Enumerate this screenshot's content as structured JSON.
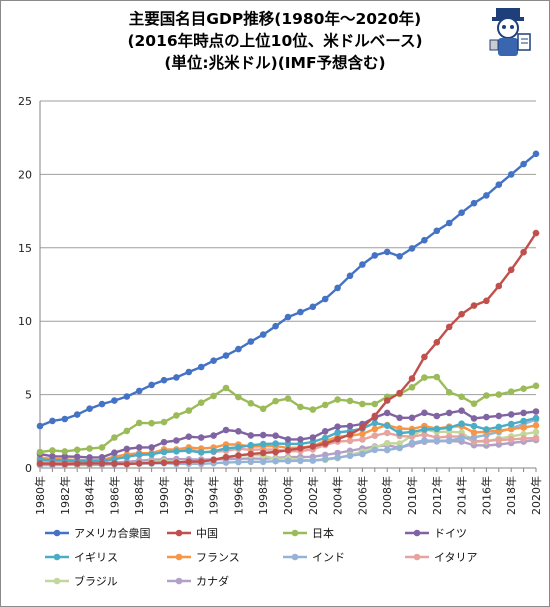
{
  "title": {
    "line1": "主要国名目GDP推移(1980年～2020年)",
    "line2": "(2016年時点の上位10位、米ドルベース)",
    "line3": "(単位:兆米ドル)(IMF予想含む)"
  },
  "chart_data": {
    "type": "line",
    "x_tick_labels": [
      "1980年",
      "1982年",
      "1984年",
      "1986年",
      "1988年",
      "1990年",
      "1992年",
      "1994年",
      "1996年",
      "1998年",
      "2000年",
      "2002年",
      "2004年",
      "2006年",
      "2008年",
      "2010年",
      "2012年",
      "2014年",
      "2016年",
      "2018年",
      "2020年"
    ],
    "y_tick_labels": [
      "0",
      "5",
      "10",
      "15",
      "20",
      "25"
    ],
    "x": [
      1980,
      1981,
      1982,
      1983,
      1984,
      1985,
      1986,
      1987,
      1988,
      1989,
      1990,
      1991,
      1992,
      1993,
      1994,
      1995,
      1996,
      1997,
      1998,
      1999,
      2000,
      2001,
      2002,
      2003,
      2004,
      2005,
      2006,
      2007,
      2008,
      2009,
      2010,
      2011,
      2012,
      2013,
      2014,
      2015,
      2016,
      2017,
      2018,
      2019,
      2020
    ],
    "ylim": [
      0,
      25
    ],
    "grid": true,
    "legend_position": "bottom",
    "series": [
      {
        "name": "アメリカ合衆国",
        "color": "#4472c4",
        "values": [
          2.86,
          3.21,
          3.34,
          3.64,
          4.04,
          4.35,
          4.59,
          4.87,
          5.25,
          5.66,
          5.98,
          6.17,
          6.54,
          6.88,
          7.31,
          7.66,
          8.1,
          8.61,
          9.09,
          9.66,
          10.28,
          10.62,
          10.98,
          11.51,
          12.27,
          13.09,
          13.86,
          14.48,
          14.72,
          14.42,
          14.96,
          15.52,
          16.16,
          16.69,
          17.39,
          18.04,
          18.57,
          19.3,
          20.0,
          20.7,
          21.4
        ]
      },
      {
        "name": "中国",
        "color": "#c0504d",
        "values": [
          0.3,
          0.29,
          0.28,
          0.3,
          0.31,
          0.31,
          0.3,
          0.27,
          0.31,
          0.35,
          0.36,
          0.38,
          0.43,
          0.44,
          0.56,
          0.73,
          0.86,
          0.96,
          1.03,
          1.09,
          1.21,
          1.34,
          1.47,
          1.66,
          1.96,
          2.29,
          2.75,
          3.55,
          4.6,
          5.11,
          6.1,
          7.57,
          8.56,
          9.61,
          10.48,
          11.06,
          11.39,
          12.4,
          13.5,
          14.7,
          16.0
        ]
      },
      {
        "name": "日本",
        "color": "#9bbb59",
        "values": [
          1.09,
          1.2,
          1.13,
          1.24,
          1.32,
          1.4,
          2.08,
          2.53,
          3.07,
          3.05,
          3.13,
          3.58,
          3.91,
          4.45,
          4.91,
          5.45,
          4.83,
          4.41,
          4.03,
          4.56,
          4.73,
          4.16,
          3.98,
          4.3,
          4.66,
          4.57,
          4.36,
          4.36,
          4.85,
          5.04,
          5.5,
          6.16,
          6.2,
          5.16,
          4.85,
          4.38,
          4.94,
          5.0,
          5.2,
          5.4,
          5.6
        ]
      },
      {
        "name": "ドイツ",
        "color": "#8064a2",
        "values": [
          0.95,
          0.8,
          0.78,
          0.77,
          0.72,
          0.73,
          1.04,
          1.3,
          1.4,
          1.4,
          1.76,
          1.87,
          2.13,
          2.07,
          2.21,
          2.59,
          2.5,
          2.22,
          2.24,
          2.2,
          1.95,
          1.95,
          2.08,
          2.5,
          2.81,
          2.86,
          3.0,
          3.44,
          3.75,
          3.42,
          3.42,
          3.76,
          3.54,
          3.75,
          3.9,
          3.38,
          3.47,
          3.55,
          3.65,
          3.75,
          3.85
        ]
      },
      {
        "name": "イギリス",
        "color": "#4bacc6",
        "values": [
          0.56,
          0.54,
          0.51,
          0.48,
          0.46,
          0.49,
          0.6,
          0.75,
          0.91,
          0.93,
          1.09,
          1.14,
          1.18,
          1.06,
          1.14,
          1.34,
          1.41,
          1.55,
          1.63,
          1.66,
          1.65,
          1.64,
          1.78,
          2.05,
          2.42,
          2.52,
          2.69,
          3.07,
          2.88,
          2.38,
          2.45,
          2.62,
          2.66,
          2.74,
          3.02,
          2.86,
          2.63,
          2.8,
          3.0,
          3.2,
          3.4
        ]
      },
      {
        "name": "フランス",
        "color": "#f79646",
        "values": [
          0.7,
          0.62,
          0.58,
          0.55,
          0.53,
          0.55,
          0.77,
          0.92,
          1.01,
          1.01,
          1.27,
          1.27,
          1.4,
          1.32,
          1.39,
          1.6,
          1.6,
          1.45,
          1.5,
          1.49,
          1.37,
          1.38,
          1.5,
          1.84,
          2.12,
          2.2,
          2.32,
          2.66,
          2.92,
          2.69,
          2.65,
          2.86,
          2.68,
          2.81,
          2.85,
          2.42,
          2.47,
          2.55,
          2.65,
          2.75,
          2.9
        ]
      },
      {
        "name": "インド",
        "color": "#95b3d7",
        "values": [
          0.19,
          0.2,
          0.21,
          0.22,
          0.22,
          0.24,
          0.25,
          0.28,
          0.3,
          0.3,
          0.33,
          0.28,
          0.29,
          0.28,
          0.33,
          0.37,
          0.4,
          0.42,
          0.42,
          0.46,
          0.48,
          0.49,
          0.51,
          0.6,
          0.71,
          0.83,
          0.95,
          1.24,
          1.22,
          1.36,
          1.71,
          1.88,
          1.86,
          1.86,
          2.04,
          2.09,
          2.25,
          2.45,
          2.7,
          3.0,
          3.3
        ]
      },
      {
        "name": "イタリア",
        "color": "#e6a39f",
        "values": [
          0.48,
          0.44,
          0.43,
          0.44,
          0.44,
          0.45,
          0.64,
          0.8,
          0.88,
          0.93,
          1.18,
          1.24,
          1.32,
          1.06,
          1.1,
          1.17,
          1.31,
          1.24,
          1.27,
          1.25,
          1.14,
          1.16,
          1.27,
          1.57,
          1.8,
          1.85,
          1.94,
          2.2,
          2.39,
          2.19,
          2.13,
          2.28,
          2.07,
          2.14,
          2.15,
          1.82,
          1.85,
          1.9,
          1.95,
          2.0,
          2.05
        ]
      },
      {
        "name": "ブラジル",
        "color": "#c3d69b",
        "values": [
          0.24,
          0.26,
          0.28,
          0.2,
          0.2,
          0.22,
          0.27,
          0.29,
          0.32,
          0.43,
          0.46,
          0.41,
          0.39,
          0.44,
          0.56,
          0.77,
          0.85,
          0.88,
          0.86,
          0.6,
          0.66,
          0.56,
          0.51,
          0.56,
          0.67,
          0.89,
          1.11,
          1.4,
          1.69,
          1.67,
          2.21,
          2.62,
          2.46,
          2.47,
          2.42,
          1.8,
          1.8,
          2.0,
          2.15,
          2.3,
          2.45
        ]
      },
      {
        "name": "カナダ",
        "color": "#b2a1c7",
        "values": [
          0.27,
          0.3,
          0.31,
          0.34,
          0.35,
          0.36,
          0.37,
          0.42,
          0.5,
          0.56,
          0.59,
          0.61,
          0.59,
          0.58,
          0.58,
          0.6,
          0.63,
          0.65,
          0.63,
          0.68,
          0.74,
          0.74,
          0.76,
          0.89,
          1.02,
          1.17,
          1.32,
          1.46,
          1.55,
          1.37,
          1.61,
          1.79,
          1.82,
          1.84,
          1.8,
          1.55,
          1.53,
          1.6,
          1.7,
          1.8,
          1.9
        ]
      }
    ]
  }
}
